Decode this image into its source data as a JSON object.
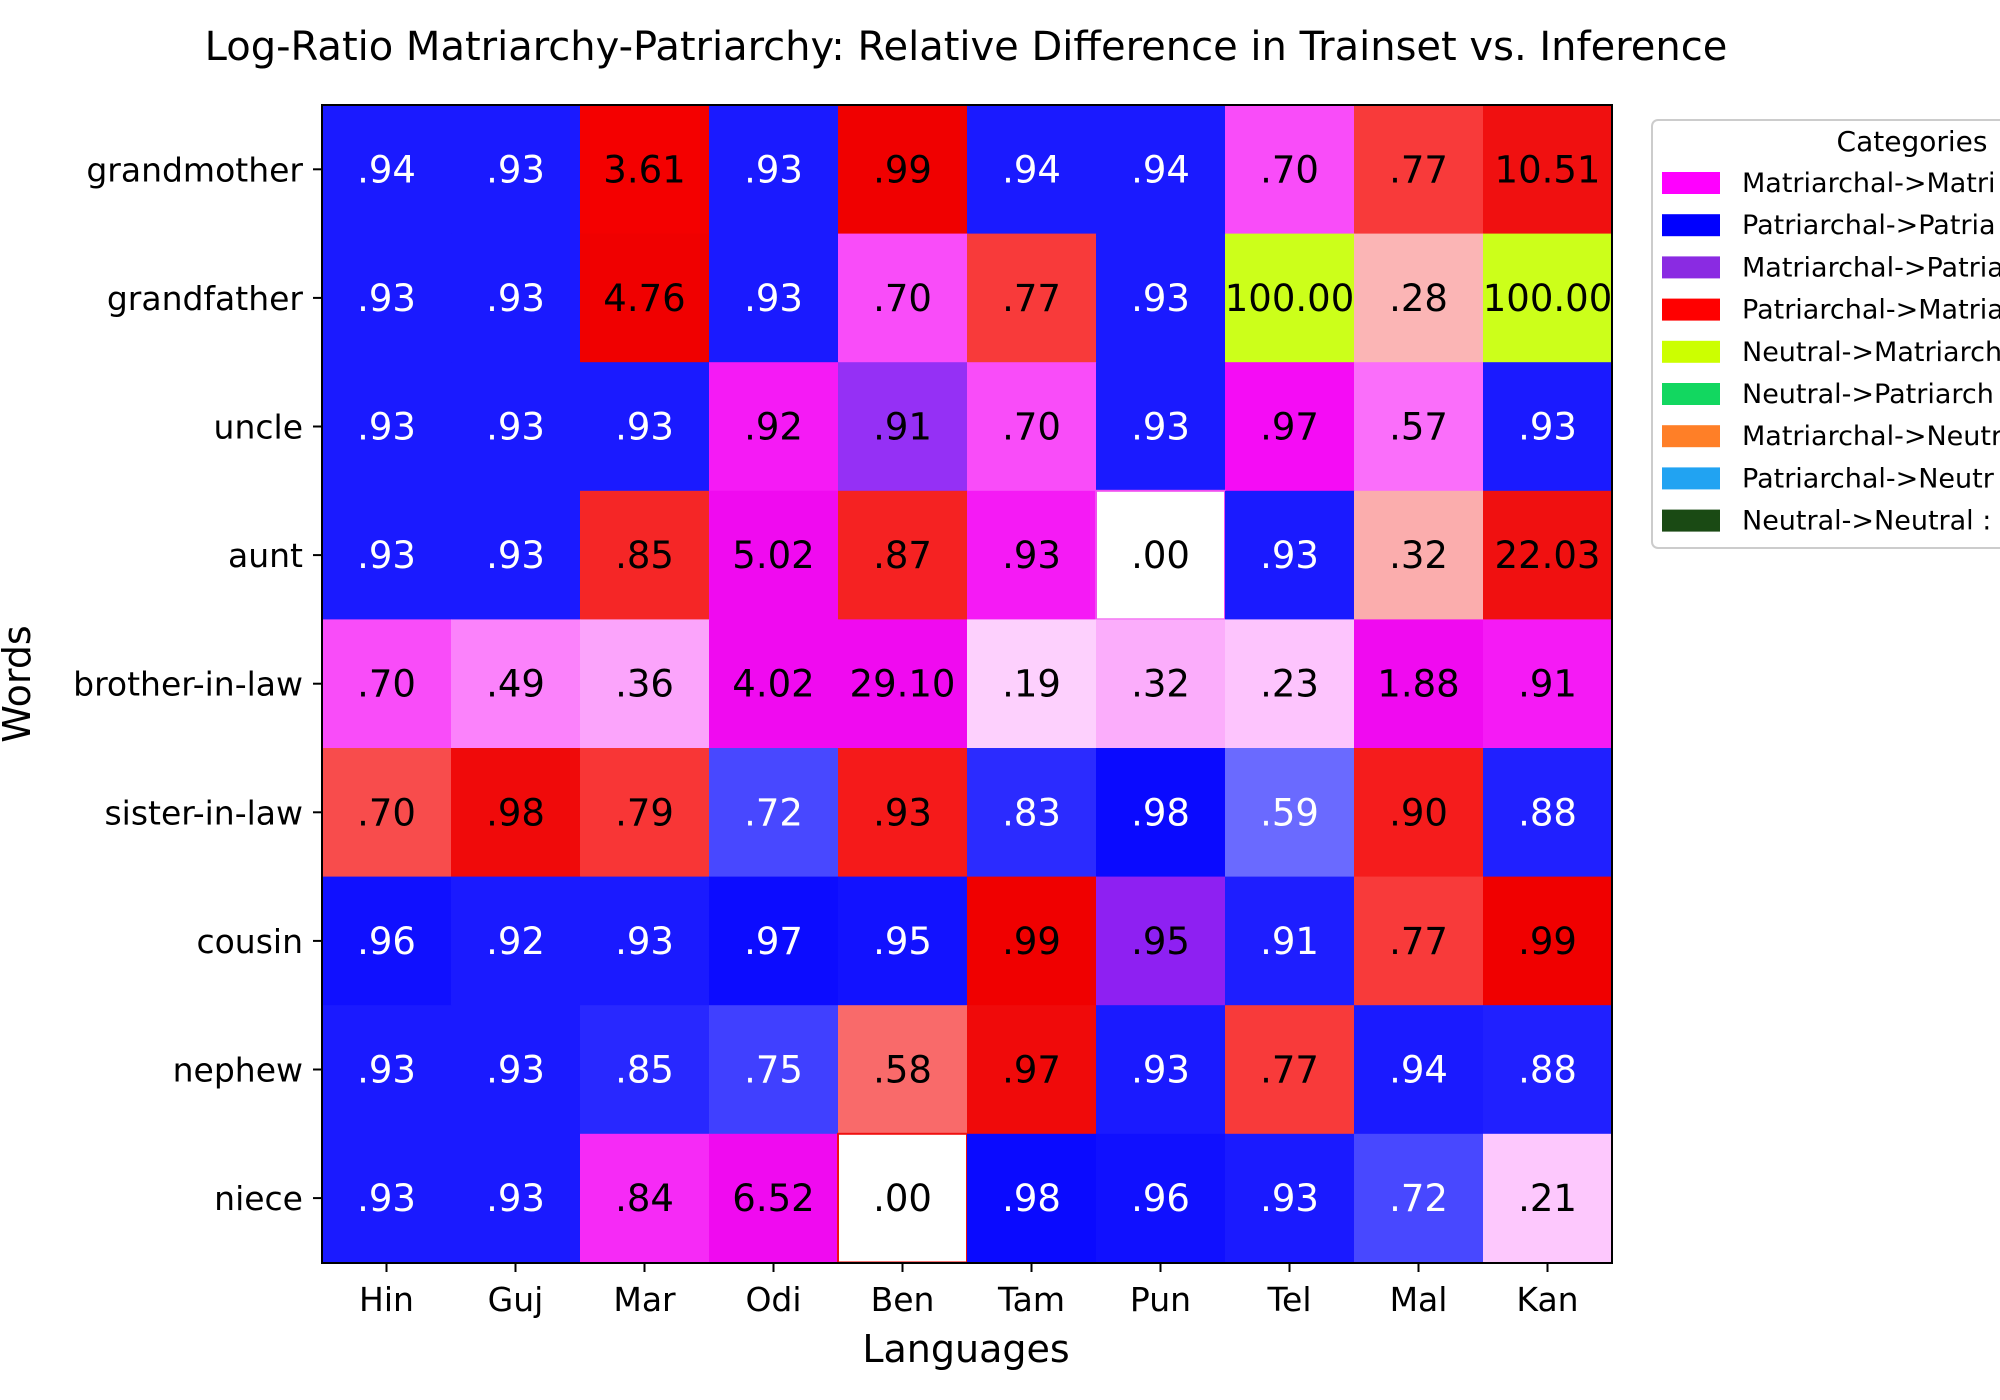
{
  "chart_data": {
    "type": "heatmap",
    "title": "Log-Ratio Matriarchy-Patriarchy: Relative Difference in Trainset vs. Inference",
    "xlabel": "Languages",
    "ylabel": "Words",
    "x_categories": [
      "Hin",
      "Guj",
      "Mar",
      "Odi",
      "Ben",
      "Tam",
      "Pun",
      "Tel",
      "Mal",
      "Kan"
    ],
    "y_categories": [
      "grandmother",
      "grandfather",
      "uncle",
      "aunt",
      "brother-in-law",
      "sister-in-law",
      "cousin",
      "nephew",
      "niece"
    ],
    "cells": [
      [
        {
          "label": ".94",
          "color": "#1a1aff",
          "text_color": "#ffffff"
        },
        {
          "label": ".93",
          "color": "#1a1aff",
          "text_color": "#ffffff"
        },
        {
          "label": "3.61",
          "color": "#f40000",
          "text_color": "#000000"
        },
        {
          "label": ".93",
          "color": "#1a1aff",
          "text_color": "#ffffff"
        },
        {
          "label": ".99",
          "color": "#f00000",
          "text_color": "#000000"
        },
        {
          "label": ".94",
          "color": "#1a1aff",
          "text_color": "#ffffff"
        },
        {
          "label": ".94",
          "color": "#1a1aff",
          "text_color": "#ffffff"
        },
        {
          "label": ".70",
          "color": "#f94cf9",
          "text_color": "#000000"
        },
        {
          "label": ".77",
          "color": "#f83a3a",
          "text_color": "#000000"
        },
        {
          "label": "10.51",
          "color": "#f01010",
          "text_color": "#000000"
        }
      ],
      [
        {
          "label": ".93",
          "color": "#1a1aff",
          "text_color": "#ffffff"
        },
        {
          "label": ".93",
          "color": "#1a1aff",
          "text_color": "#ffffff"
        },
        {
          "label": "4.76",
          "color": "#f00000",
          "text_color": "#000000"
        },
        {
          "label": ".93",
          "color": "#1a1aff",
          "text_color": "#ffffff"
        },
        {
          "label": ".70",
          "color": "#f94cf9",
          "text_color": "#000000"
        },
        {
          "label": ".77",
          "color": "#f83a3a",
          "text_color": "#000000"
        },
        {
          "label": ".93",
          "color": "#1a1aff",
          "text_color": "#ffffff"
        },
        {
          "label": "100.00",
          "color": "#ccff1a",
          "text_color": "#000000"
        },
        {
          "label": ".28",
          "color": "#fbb5b5",
          "text_color": "#000000"
        },
        {
          "label": "100.00",
          "color": "#ccff1a",
          "text_color": "#000000"
        }
      ],
      [
        {
          "label": ".93",
          "color": "#1a1aff",
          "text_color": "#ffffff"
        },
        {
          "label": ".93",
          "color": "#1a1aff",
          "text_color": "#ffffff"
        },
        {
          "label": ".93",
          "color": "#1a1aff",
          "text_color": "#ffffff"
        },
        {
          "label": ".92",
          "color": "#f51af5",
          "text_color": "#000000"
        },
        {
          "label": ".91",
          "color": "#9530f5",
          "text_color": "#000000"
        },
        {
          "label": ".70",
          "color": "#f94cf9",
          "text_color": "#000000"
        },
        {
          "label": ".93",
          "color": "#1a1aff",
          "text_color": "#ffffff"
        },
        {
          "label": ".97",
          "color": "#f50cf5",
          "text_color": "#000000"
        },
        {
          "label": ".57",
          "color": "#fa6efa",
          "text_color": "#000000"
        },
        {
          "label": ".93",
          "color": "#1a1aff",
          "text_color": "#ffffff"
        }
      ],
      [
        {
          "label": ".93",
          "color": "#1a1aff",
          "text_color": "#ffffff"
        },
        {
          "label": ".93",
          "color": "#1a1aff",
          "text_color": "#ffffff"
        },
        {
          "label": ".85",
          "color": "#f52626",
          "text_color": "#000000"
        },
        {
          "label": "5.02",
          "color": "#f00af0",
          "text_color": "#000000"
        },
        {
          "label": ".87",
          "color": "#f52222",
          "text_color": "#000000"
        },
        {
          "label": ".93",
          "color": "#f51af5",
          "text_color": "#000000"
        },
        {
          "label": ".00",
          "color": "#ffffff",
          "text_color": "#000000",
          "border": "#f04ff0"
        },
        {
          "label": ".93",
          "color": "#1a1aff",
          "text_color": "#ffffff"
        },
        {
          "label": ".32",
          "color": "#fbadad",
          "text_color": "#000000"
        },
        {
          "label": "22.03",
          "color": "#f01010",
          "text_color": "#000000"
        }
      ],
      [
        {
          "label": ".70",
          "color": "#f94cf9",
          "text_color": "#000000"
        },
        {
          "label": ".49",
          "color": "#fb82fb",
          "text_color": "#000000"
        },
        {
          "label": ".36",
          "color": "#fba4fb",
          "text_color": "#000000"
        },
        {
          "label": "4.02",
          "color": "#f00af0",
          "text_color": "#000000"
        },
        {
          "label": "29.10",
          "color": "#f00af0",
          "text_color": "#000000"
        },
        {
          "label": ".19",
          "color": "#fdd0fd",
          "text_color": "#000000"
        },
        {
          "label": ".32",
          "color": "#fbadfb",
          "text_color": "#000000"
        },
        {
          "label": ".23",
          "color": "#fdc4fd",
          "text_color": "#000000"
        },
        {
          "label": "1.88",
          "color": "#f00af0",
          "text_color": "#000000"
        },
        {
          "label": ".91",
          "color": "#f51af5",
          "text_color": "#000000"
        }
      ],
      [
        {
          "label": ".70",
          "color": "#f84c4c",
          "text_color": "#000000"
        },
        {
          "label": ".98",
          "color": "#f00a0a",
          "text_color": "#000000"
        },
        {
          "label": ".79",
          "color": "#f83636",
          "text_color": "#000000"
        },
        {
          "label": ".72",
          "color": "#4848ff",
          "text_color": "#ffffff"
        },
        {
          "label": ".93",
          "color": "#f51a1a",
          "text_color": "#000000"
        },
        {
          "label": ".83",
          "color": "#2b2bff",
          "text_color": "#ffffff"
        },
        {
          "label": ".98",
          "color": "#0a0aff",
          "text_color": "#ffffff"
        },
        {
          "label": ".59",
          "color": "#6a6aff",
          "text_color": "#ffffff"
        },
        {
          "label": ".90",
          "color": "#f51c1c",
          "text_color": "#000000"
        },
        {
          "label": ".88",
          "color": "#2020ff",
          "text_color": "#ffffff"
        }
      ],
      [
        {
          "label": ".96",
          "color": "#1010ff",
          "text_color": "#ffffff"
        },
        {
          "label": ".92",
          "color": "#1a1aff",
          "text_color": "#ffffff"
        },
        {
          "label": ".93",
          "color": "#1a1aff",
          "text_color": "#ffffff"
        },
        {
          "label": ".97",
          "color": "#0c0cff",
          "text_color": "#ffffff"
        },
        {
          "label": ".95",
          "color": "#1212ff",
          "text_color": "#ffffff"
        },
        {
          "label": ".99",
          "color": "#f00000",
          "text_color": "#000000"
        },
        {
          "label": ".95",
          "color": "#8e20f2",
          "text_color": "#000000"
        },
        {
          "label": ".91",
          "color": "#1e1eff",
          "text_color": "#ffffff"
        },
        {
          "label": ".77",
          "color": "#f83a3a",
          "text_color": "#000000"
        },
        {
          "label": ".99",
          "color": "#f00000",
          "text_color": "#000000"
        }
      ],
      [
        {
          "label": ".93",
          "color": "#1a1aff",
          "text_color": "#ffffff"
        },
        {
          "label": ".93",
          "color": "#1a1aff",
          "text_color": "#ffffff"
        },
        {
          "label": ".85",
          "color": "#2828ff",
          "text_color": "#ffffff"
        },
        {
          "label": ".75",
          "color": "#4040ff",
          "text_color": "#ffffff"
        },
        {
          "label": ".58",
          "color": "#f96a6a",
          "text_color": "#000000"
        },
        {
          "label": ".97",
          "color": "#f00a0a",
          "text_color": "#000000"
        },
        {
          "label": ".93",
          "color": "#1a1aff",
          "text_color": "#ffffff"
        },
        {
          "label": ".77",
          "color": "#f83a3a",
          "text_color": "#000000"
        },
        {
          "label": ".94",
          "color": "#1a1aff",
          "text_color": "#ffffff"
        },
        {
          "label": ".88",
          "color": "#2020ff",
          "text_color": "#ffffff"
        }
      ],
      [
        {
          "label": ".93",
          "color": "#1a1aff",
          "text_color": "#ffffff"
        },
        {
          "label": ".93",
          "color": "#1a1aff",
          "text_color": "#ffffff"
        },
        {
          "label": ".84",
          "color": "#f62af6",
          "text_color": "#000000"
        },
        {
          "label": "6.52",
          "color": "#f00af0",
          "text_color": "#000000"
        },
        {
          "label": ".00",
          "color": "#ffffff",
          "text_color": "#000000",
          "border": "#f01010"
        },
        {
          "label": ".98",
          "color": "#0a0aff",
          "text_color": "#ffffff"
        },
        {
          "label": ".96",
          "color": "#1010ff",
          "text_color": "#ffffff"
        },
        {
          "label": ".93",
          "color": "#1a1aff",
          "text_color": "#ffffff"
        },
        {
          "label": ".72",
          "color": "#4848ff",
          "text_color": "#ffffff"
        },
        {
          "label": ".21",
          "color": "#fdc8fd",
          "text_color": "#000000"
        }
      ]
    ],
    "legend": {
      "title": "Categories",
      "placement": "outside-right-top",
      "entries": [
        {
          "label": "Matriarchal->Matri",
          "color": "#ff00ff"
        },
        {
          "label": "Patriarchal->Patria",
          "color": "#0000ff"
        },
        {
          "label": "Matriarchal->Patria",
          "color": "#8a2be2"
        },
        {
          "label": "Patriarchal->Matria",
          "color": "#ff0000"
        },
        {
          "label": "Neutral->Matriarch",
          "color": "#ccff00"
        },
        {
          "label": "Neutral->Patriarch",
          "color": "#12d760"
        },
        {
          "label": "Matriarchal->Neutr",
          "color": "#ff7f27"
        },
        {
          "label": "Patriarchal->Neutr",
          "color": "#21a3f2"
        },
        {
          "label": "Neutral->Neutral :",
          "color": "#1a4a14"
        }
      ]
    }
  }
}
